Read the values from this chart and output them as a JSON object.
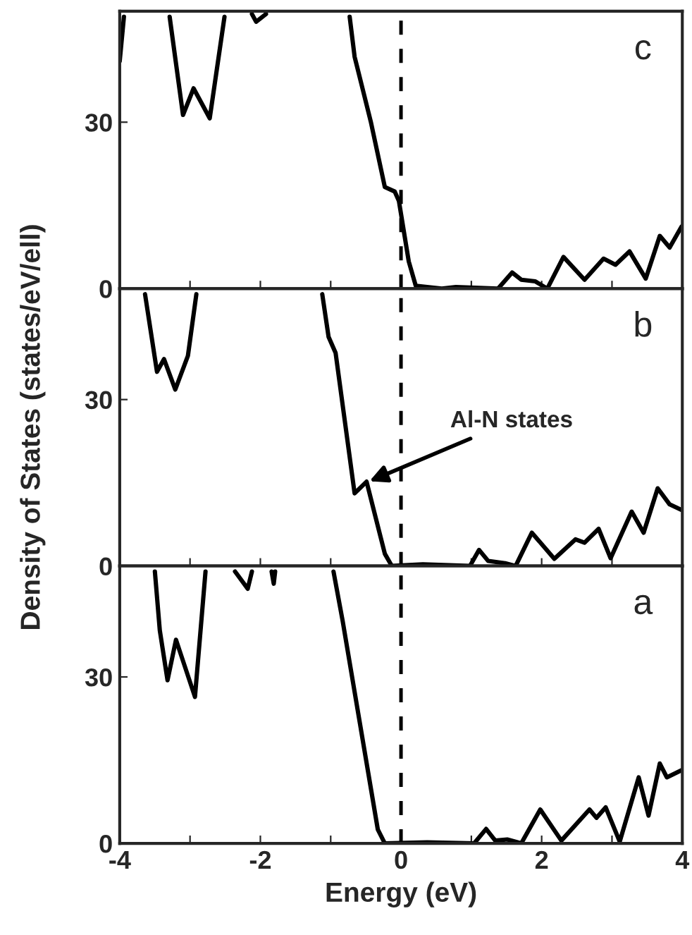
{
  "chart_data": [
    {
      "type": "line",
      "xlim": [
        -4,
        4
      ],
      "ylim": [
        0,
        50
      ],
      "yticks": [
        0,
        30
      ],
      "xticks": [
        -4,
        {
          "value": -3,
          "label": null
        },
        -2,
        {
          "value": -1,
          "label": null
        },
        0,
        {
          "value": 1,
          "label": null
        },
        2,
        {
          "value": 3,
          "label": null
        },
        4
      ],
      "tick_labels": "y",
      "annotations": [
        "c"
      ],
      "ref_lines": [
        {
          "axis": "x",
          "value": 0,
          "line_style": "dashed"
        }
      ],
      "series": [
        {
          "color": "#000000",
          "x": [
            -4.0,
            -3.94,
            -3.92,
            -3.29,
            -3.1,
            -2.95,
            -2.72,
            -2.51,
            -2.49,
            -2.12,
            -2.06,
            -1.92,
            -1.89,
            -0.73,
            -0.66,
            -0.43,
            -0.23,
            -0.09,
            -0.03,
            0.11,
            0.21,
            0.58,
            0.78,
            1.38,
            1.58,
            1.71,
            1.91,
            2.08,
            2.31,
            2.61,
            2.88,
            3.05,
            3.25,
            3.48,
            3.68,
            3.82,
            3.99
          ],
          "values": [
            41,
            49,
            null,
            49,
            31.3,
            36.1,
            30.7,
            49,
            null,
            49.5,
            48.1,
            49.5,
            null,
            49,
            41.8,
            30.1,
            18.3,
            17.5,
            15.8,
            4.9,
            0.5,
            0,
            0.3,
            0,
            2.9,
            1.6,
            1.3,
            0,
            5.7,
            1.6,
            5.4,
            4.3,
            6.7,
            1.8,
            9.5,
            7.4,
            11.2
          ]
        }
      ]
    },
    {
      "type": "line",
      "xlim": [
        -4,
        4
      ],
      "ylim": [
        0,
        50
      ],
      "yticks": [
        0,
        30
      ],
      "xticks": [
        -4,
        {
          "value": -3,
          "label": null
        },
        -2,
        {
          "value": -1,
          "label": null
        },
        0,
        {
          "value": 1,
          "label": null
        },
        2,
        {
          "value": 3,
          "label": null
        },
        4
      ],
      "tick_labels": "y",
      "ylabel": "Density of States (states/eV/ell)",
      "annotations": [
        "b",
        {
          "text": "Al-N states",
          "x": -0.5,
          "y": 15
        }
      ],
      "ref_lines": [
        {
          "axis": "x",
          "value": 0,
          "line_style": "dashed"
        }
      ],
      "series": [
        {
          "color": "#000000",
          "x": [
            -3.64,
            -3.47,
            -3.37,
            -3.21,
            -3.03,
            -2.91,
            -2.89,
            -1.12,
            -1.03,
            -0.93,
            -0.66,
            -0.49,
            -0.23,
            -0.13,
            0.31,
            0.98,
            1.11,
            1.24,
            1.48,
            1.63,
            1.86,
            2.18,
            2.48,
            2.61,
            2.81,
            2.98,
            3.28,
            3.45,
            3.65,
            3.82,
            3.99
          ],
          "values": [
            49,
            35.0,
            37.3,
            31.8,
            37.9,
            49,
            null,
            49,
            41.3,
            38.4,
            13.1,
            15.2,
            2.2,
            0,
            0.3,
            0,
            2.9,
            0.9,
            0.5,
            0,
            6.0,
            1.3,
            4.8,
            4.2,
            6.7,
            1.4,
            9.8,
            6.0,
            14.0,
            11.1,
            10.1
          ]
        }
      ]
    },
    {
      "type": "line",
      "xlim": [
        -4,
        4
      ],
      "ylim": [
        0,
        50
      ],
      "yticks": [
        0,
        30
      ],
      "xticks": [
        -4,
        {
          "value": -3,
          "label": null
        },
        -2,
        {
          "value": -1,
          "label": null
        },
        0,
        {
          "value": 1,
          "label": null
        },
        2,
        {
          "value": 3,
          "label": null
        },
        4
      ],
      "xlabel": "Energy (eV)",
      "annotations": [
        "a"
      ],
      "ref_lines": [
        {
          "axis": "x",
          "value": 0,
          "line_style": "dashed"
        }
      ],
      "series": [
        {
          "color": "#000000",
          "x": [
            -3.5,
            -3.43,
            -3.32,
            -3.2,
            -2.93,
            -2.78,
            -2.76,
            -2.36,
            -2.18,
            -2.12,
            -2.1,
            -1.84,
            -1.81,
            -1.79,
            -1.77,
            -0.96,
            -0.83,
            -0.33,
            -0.23,
            0.37,
            1.04,
            1.21,
            1.34,
            1.51,
            1.71,
            1.98,
            2.28,
            2.68,
            2.78,
            2.91,
            3.11,
            3.38,
            3.52,
            3.68,
            3.78,
            3.99
          ],
          "values": [
            49,
            38.4,
            29.4,
            36.7,
            26.4,
            49,
            null,
            49,
            45.9,
            49,
            null,
            49,
            46.8,
            49,
            null,
            49,
            40.1,
            2.5,
            0,
            0.2,
            0,
            2.6,
            0.5,
            0.7,
            0,
            6.1,
            0.5,
            6.1,
            4.6,
            6.5,
            0.3,
            11.9,
            5.0,
            14.4,
            11.9,
            13.2
          ]
        }
      ]
    }
  ]
}
